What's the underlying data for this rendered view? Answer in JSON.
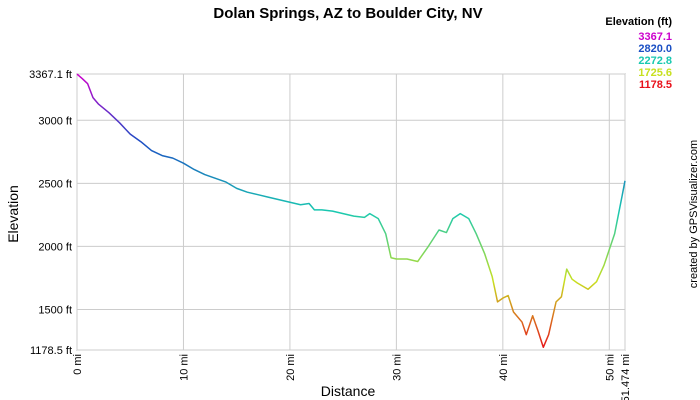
{
  "chart_data": {
    "type": "line",
    "title": "Dolan Springs, AZ to Boulder City, NV",
    "x_label": "Distance",
    "y_label": "Elevation",
    "credit": "created by GPSVisualizer.com",
    "legend": {
      "title": "Elevation (ft)",
      "labels": [
        "3367.1",
        "2820.0",
        "2272.8",
        "1725.6",
        "1178.5"
      ],
      "colors": [
        "#cc00cc",
        "#1a4fc4",
        "#19c9b0",
        "#c8e020",
        "#e8101a"
      ]
    },
    "grid": true,
    "xlim": [
      0,
      51.474
    ],
    "ylim": [
      1178.5,
      3367.1
    ],
    "xticks": [
      {
        "value": 0,
        "label": "0 mi"
      },
      {
        "value": 10,
        "label": "10 mi"
      },
      {
        "value": 20,
        "label": "20 mi"
      },
      {
        "value": 30,
        "label": "30 mi"
      },
      {
        "value": 40,
        "label": "40 mi"
      },
      {
        "value": 50,
        "label": "50 mi"
      },
      {
        "value": 51.474,
        "label": "51.474 mi"
      }
    ],
    "yticks": [
      {
        "value": 1178.5,
        "label": "1178.5 ft"
      },
      {
        "value": 1500,
        "label": "1500 ft"
      },
      {
        "value": 2000,
        "label": "2000 ft"
      },
      {
        "value": 2500,
        "label": "2500 ft"
      },
      {
        "value": 3000,
        "label": "3000 ft"
      },
      {
        "value": 3367.1,
        "label": "3367.1 ft"
      }
    ],
    "x": [
      0,
      0.5,
      1,
      1.5,
      2,
      3,
      4,
      5,
      6,
      7,
      8,
      9,
      10,
      11,
      12,
      13,
      14,
      15,
      16,
      17,
      18,
      19,
      20,
      21,
      21.8,
      22.3,
      23,
      24,
      25,
      26,
      27,
      27.5,
      28.3,
      29,
      29.5,
      30,
      31,
      32,
      33,
      34,
      34.7,
      35.3,
      36,
      36.8,
      37.5,
      38.3,
      39,
      39.5,
      40,
      40.5,
      41,
      41.8,
      42.2,
      42.8,
      43.3,
      43.8,
      44.3,
      45,
      45.5,
      46,
      46.5,
      47,
      48,
      48.8,
      49.5,
      50.5,
      51.2,
      51.474
    ],
    "series": [
      {
        "name": "Elevation",
        "values": [
          3367,
          3330,
          3290,
          3180,
          3130,
          3060,
          2980,
          2890,
          2830,
          2760,
          2720,
          2700,
          2660,
          2610,
          2570,
          2540,
          2510,
          2460,
          2430,
          2410,
          2390,
          2370,
          2350,
          2330,
          2340,
          2290,
          2290,
          2280,
          2260,
          2240,
          2230,
          2260,
          2220,
          2100,
          1910,
          1900,
          1900,
          1880,
          2000,
          2130,
          2110,
          2220,
          2260,
          2220,
          2100,
          1940,
          1760,
          1560,
          1590,
          1610,
          1480,
          1400,
          1300,
          1450,
          1330,
          1200,
          1300,
          1560,
          1600,
          1820,
          1740,
          1710,
          1660,
          1720,
          1850,
          2100,
          2400,
          2520
        ]
      }
    ]
  }
}
